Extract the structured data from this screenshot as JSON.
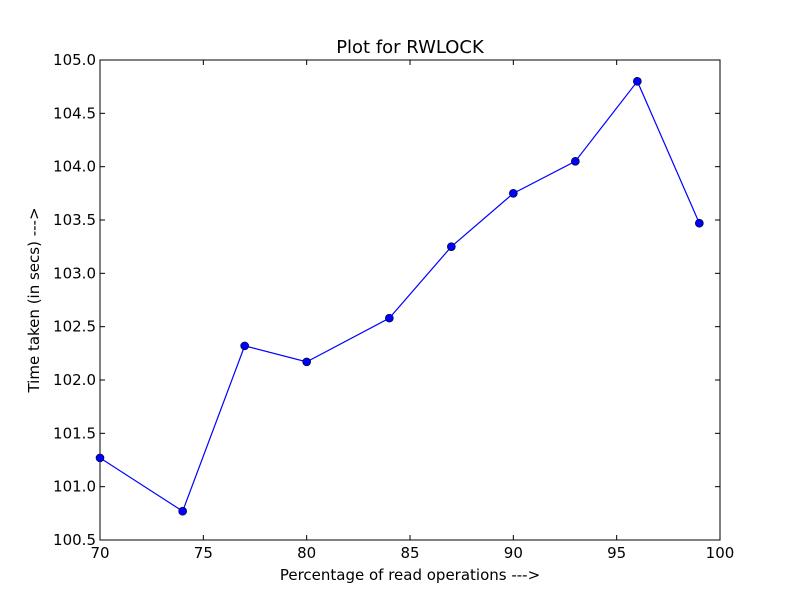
{
  "chart_data": {
    "type": "line",
    "title": "Plot for RWLOCK",
    "xlabel": "Percentage of read operations --->",
    "ylabel": "Time taken (in secs) --->",
    "xlim": [
      70,
      100
    ],
    "ylim": [
      100.5,
      105.0
    ],
    "x_ticks": [
      70,
      75,
      80,
      85,
      90,
      95,
      100
    ],
    "y_ticks": [
      100.5,
      101.0,
      101.5,
      102.0,
      102.5,
      103.0,
      103.5,
      104.0,
      104.5,
      105.0
    ],
    "x_tick_labels": [
      "70",
      "75",
      "80",
      "85",
      "90",
      "95",
      "100"
    ],
    "y_tick_labels": [
      "100.5",
      "101.0",
      "101.5",
      "102.0",
      "102.5",
      "103.0",
      "103.5",
      "104.0",
      "104.5",
      "105.0"
    ],
    "grid": false,
    "series": [
      {
        "color": "#0000ff",
        "marker": "circle",
        "x": [
          70,
          74,
          77,
          80,
          84,
          87,
          90,
          93,
          96,
          99
        ],
        "y": [
          101.27,
          100.77,
          102.32,
          102.17,
          102.58,
          103.25,
          103.75,
          104.05,
          104.8,
          103.47
        ]
      }
    ]
  }
}
